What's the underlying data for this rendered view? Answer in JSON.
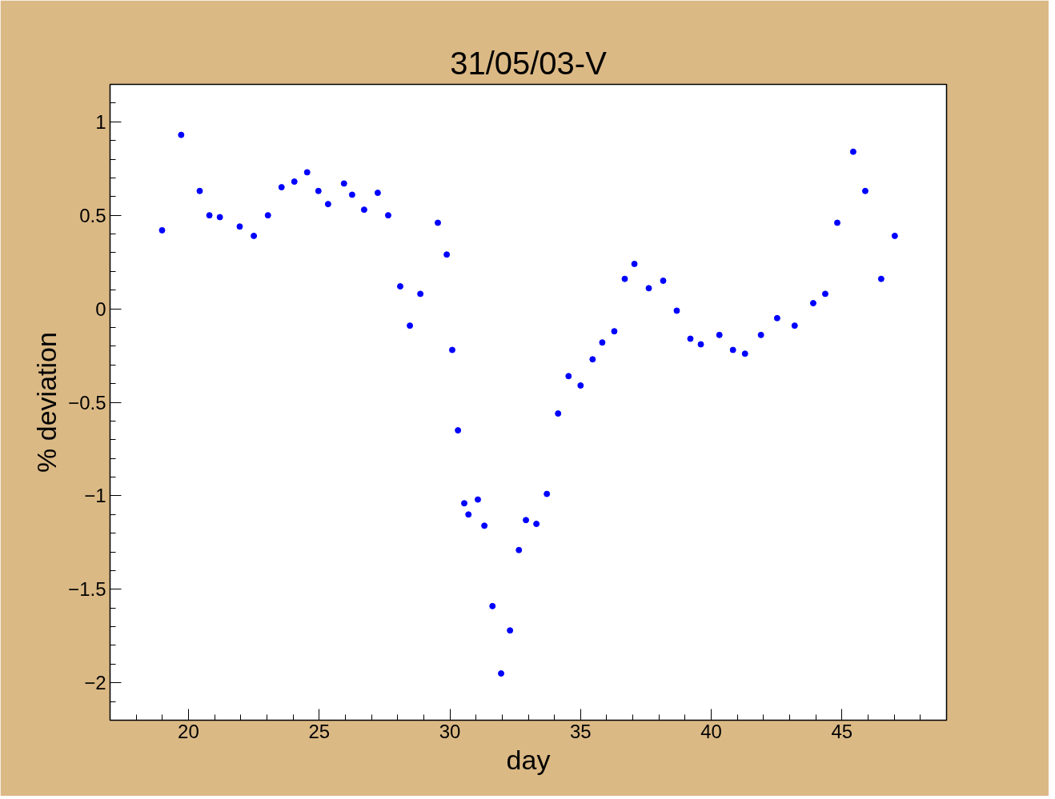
{
  "chart_data": {
    "type": "scatter",
    "title": "31/05/03-V",
    "xlabel": "day",
    "ylabel": "% deviation",
    "marker": "circle",
    "grid": false,
    "xlim": [
      17,
      49
    ],
    "ylim": [
      -2.2,
      1.2
    ],
    "xticks": [
      20,
      25,
      30,
      35,
      40,
      45
    ],
    "yticks": [
      {
        "value": -2,
        "label": "−2"
      },
      {
        "value": -1.5,
        "label": "−1.5"
      },
      {
        "value": -1,
        "label": "−1"
      },
      {
        "value": -0.5,
        "label": "−0.5"
      },
      0,
      0.5,
      1
    ],
    "series": [
      {
        "color": "#0000ff",
        "x": [
          18.99,
          19.72,
          20.43,
          20.8,
          21.2,
          21.96,
          22.5,
          23.04,
          23.56,
          24.05,
          24.54,
          24.97,
          25.34,
          25.95,
          26.26,
          26.72,
          27.24,
          27.64,
          28.1,
          28.47,
          28.87,
          29.54,
          29.88,
          30.09,
          30.31,
          30.55,
          30.71,
          31.07,
          31.32,
          31.63,
          31.96,
          32.3,
          32.64,
          32.91,
          33.31,
          33.71,
          34.14,
          34.54,
          35.0,
          35.46,
          35.83,
          36.29,
          36.69,
          37.06,
          37.61,
          38.16,
          38.68,
          39.2,
          39.6,
          40.31,
          40.83,
          41.29,
          41.9,
          42.52,
          43.19,
          43.9,
          44.36,
          44.82,
          45.43,
          45.89,
          46.5,
          47.02
        ],
        "values": [
          0.42,
          0.93,
          0.63,
          0.5,
          0.49,
          0.44,
          0.39,
          0.5,
          0.65,
          0.68,
          0.73,
          0.63,
          0.56,
          0.67,
          0.61,
          0.53,
          0.62,
          0.5,
          0.12,
          -0.09,
          0.08,
          0.46,
          0.29,
          -0.22,
          -0.65,
          -1.04,
          -1.1,
          -1.02,
          -1.16,
          -1.59,
          -1.95,
          -1.72,
          -1.29,
          -1.13,
          -1.15,
          -0.99,
          -0.56,
          -0.36,
          -0.41,
          -0.27,
          -0.18,
          -0.12,
          0.16,
          0.24,
          0.11,
          0.15,
          -0.01,
          -0.16,
          -0.19,
          -0.14,
          -0.22,
          -0.24,
          -0.14,
          -0.05,
          -0.09,
          0.03,
          0.08,
          0.46,
          0.84,
          0.63,
          0.16,
          0.39
        ]
      }
    ]
  }
}
